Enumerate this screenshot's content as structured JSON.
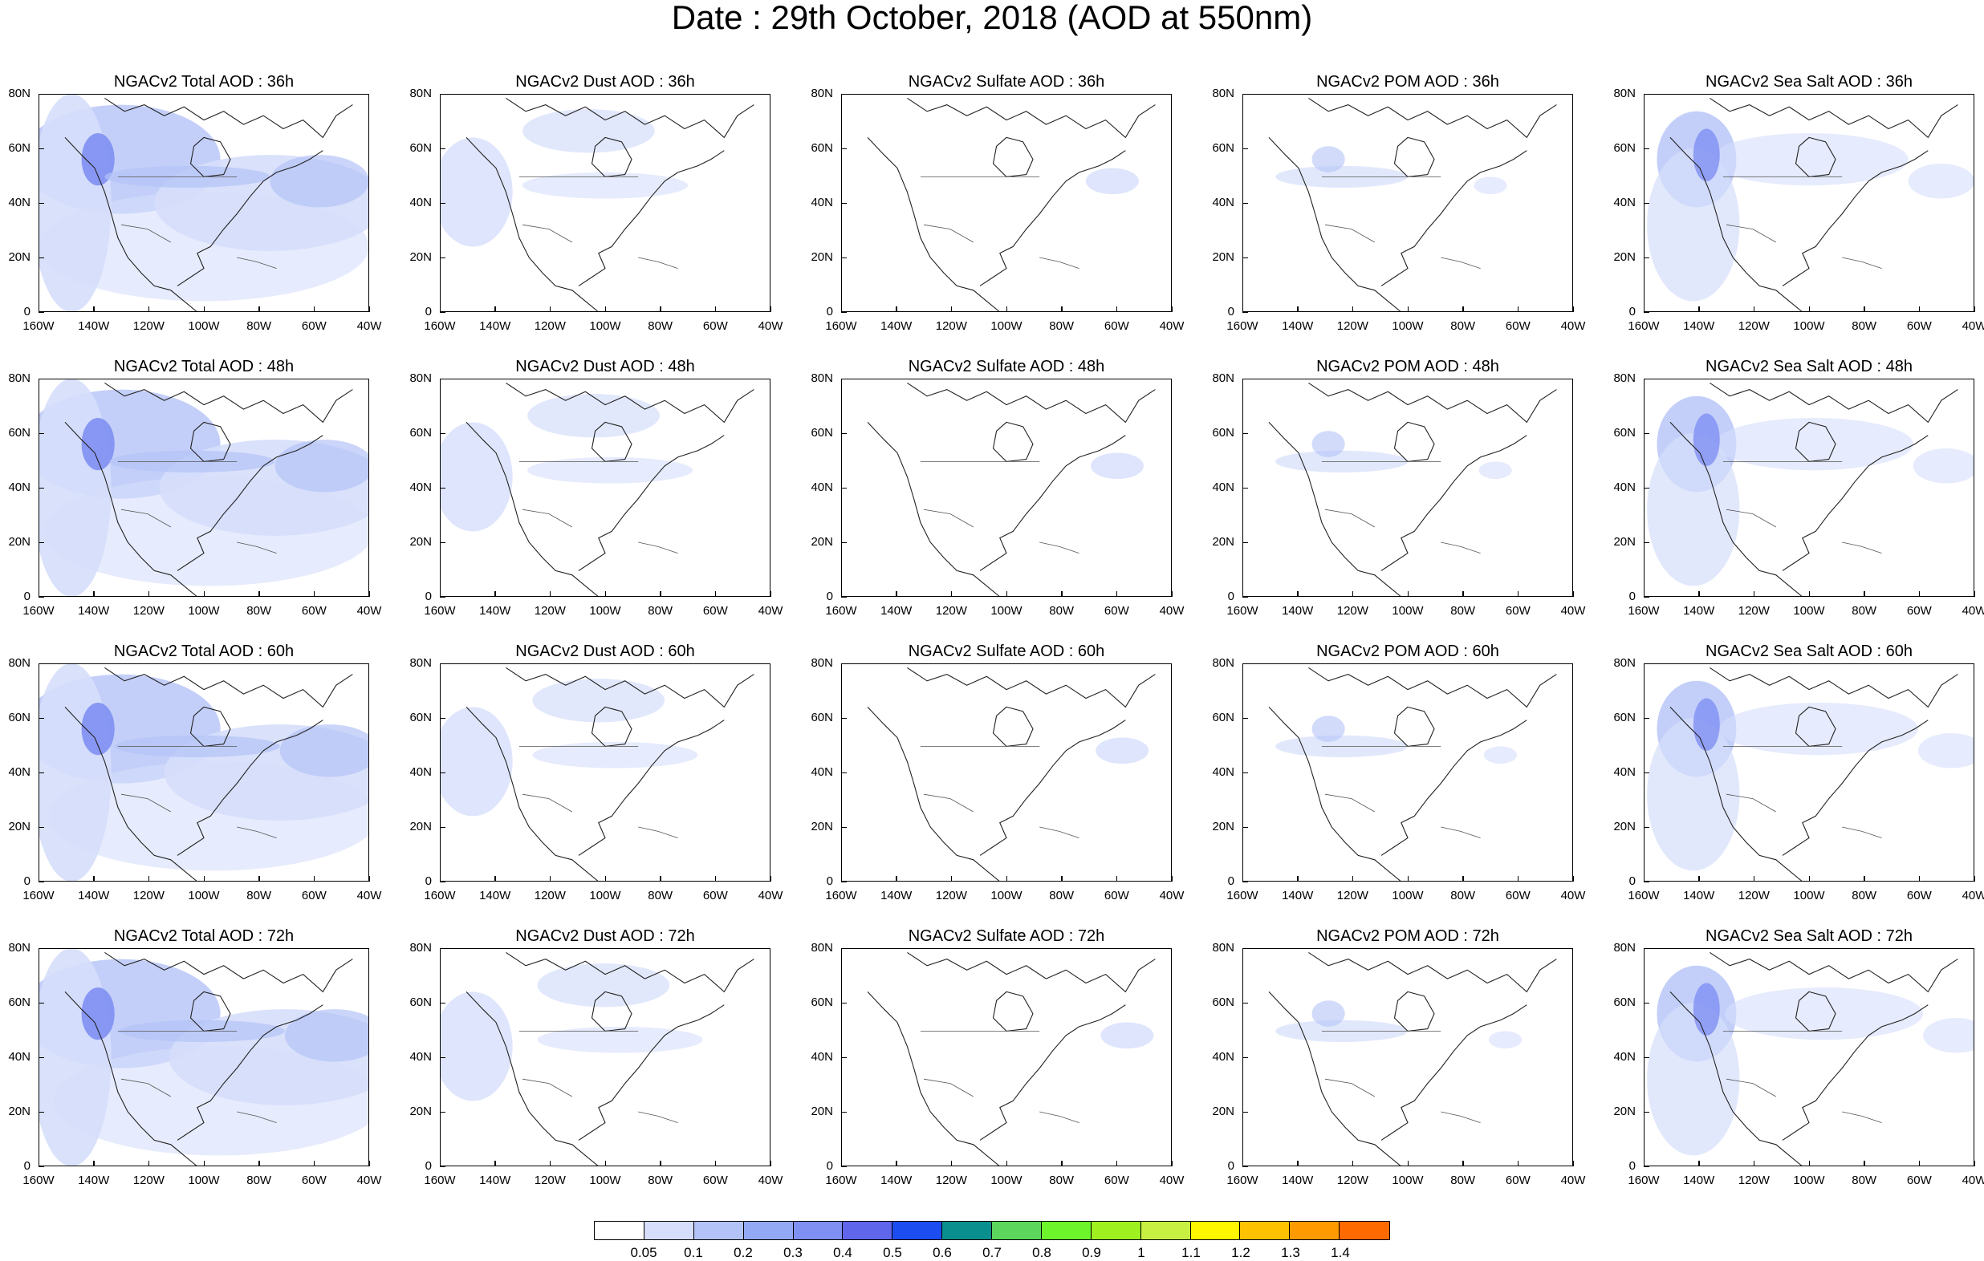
{
  "title": "Date : 29th October, 2018 (AOD at 550nm)",
  "x_ticks": [
    "160W",
    "140W",
    "120W",
    "100W",
    "80W",
    "60W",
    "40W"
  ],
  "y_ticks": [
    "80N",
    "60N",
    "40N",
    "20N",
    "0"
  ],
  "panels": [
    [
      "NGACv2 Total AOD : 36h",
      "NGACv2 Dust AOD : 36h",
      "NGACv2 Sulfate AOD : 36h",
      "NGACv2 POM AOD : 36h",
      "NGACv2 Sea Salt AOD : 36h"
    ],
    [
      "NGACv2 Total AOD : 48h",
      "NGACv2 Dust AOD : 48h",
      "NGACv2 Sulfate AOD : 48h",
      "NGACv2 POM AOD : 48h",
      "NGACv2 Sea Salt AOD : 48h"
    ],
    [
      "NGACv2 Total AOD : 60h",
      "NGACv2 Dust AOD : 60h",
      "NGACv2 Sulfate AOD : 60h",
      "NGACv2 POM AOD : 60h",
      "NGACv2 Sea Salt AOD : 60h"
    ],
    [
      "NGACv2 Total AOD : 72h",
      "NGACv2 Dust AOD : 72h",
      "NGACv2 Sulfate AOD : 72h",
      "NGACv2 POM AOD : 72h",
      "NGACv2 Sea Salt  AOD : 72h"
    ]
  ],
  "colorbar": {
    "labels": [
      "0.05",
      "0.1",
      "0.2",
      "0.3",
      "0.4",
      "0.5",
      "0.6",
      "0.7",
      "0.8",
      "0.9",
      "1",
      "1.1",
      "1.2",
      "1.3",
      "1.4"
    ],
    "colors": [
      "#ffffff",
      "#d6defb",
      "#b4c3f7",
      "#93a9f5",
      "#7f8ff2",
      "#5f66ec",
      "#1c4df0",
      "#0a8f8f",
      "#5cd65c",
      "#6ef42a",
      "#9ef01f",
      "#c8f042",
      "#fff700",
      "#ffc200",
      "#ff9a00",
      "#ff6a00",
      "#ff2a10"
    ]
  }
}
